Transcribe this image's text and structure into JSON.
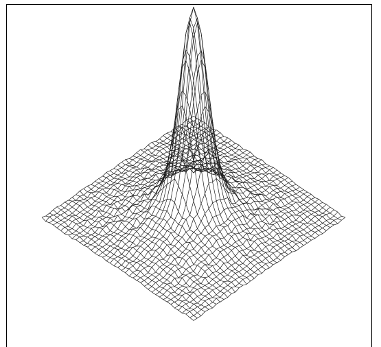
{
  "chart_data": {
    "type": "surface-wireframe",
    "title": "",
    "xlabel": "",
    "ylabel": "",
    "zlabel": "",
    "grid_size": [
      41,
      41
    ],
    "x_range": [
      -1,
      1
    ],
    "y_range": [
      -1,
      1
    ],
    "z_range": [
      0,
      1
    ],
    "peak": {
      "x": 0,
      "y": 0,
      "z": 1.0
    },
    "surface": {
      "peak_height": 1.0,
      "peak_width": 0.13,
      "shoulder_height": 0.14,
      "shoulder_width": 0.42,
      "corner_height": 0.0,
      "noise_amplitude": 0.025
    },
    "axes_visible": false,
    "grid": false,
    "line_color": "#1a1a1a",
    "background_color": "#ffffff"
  }
}
